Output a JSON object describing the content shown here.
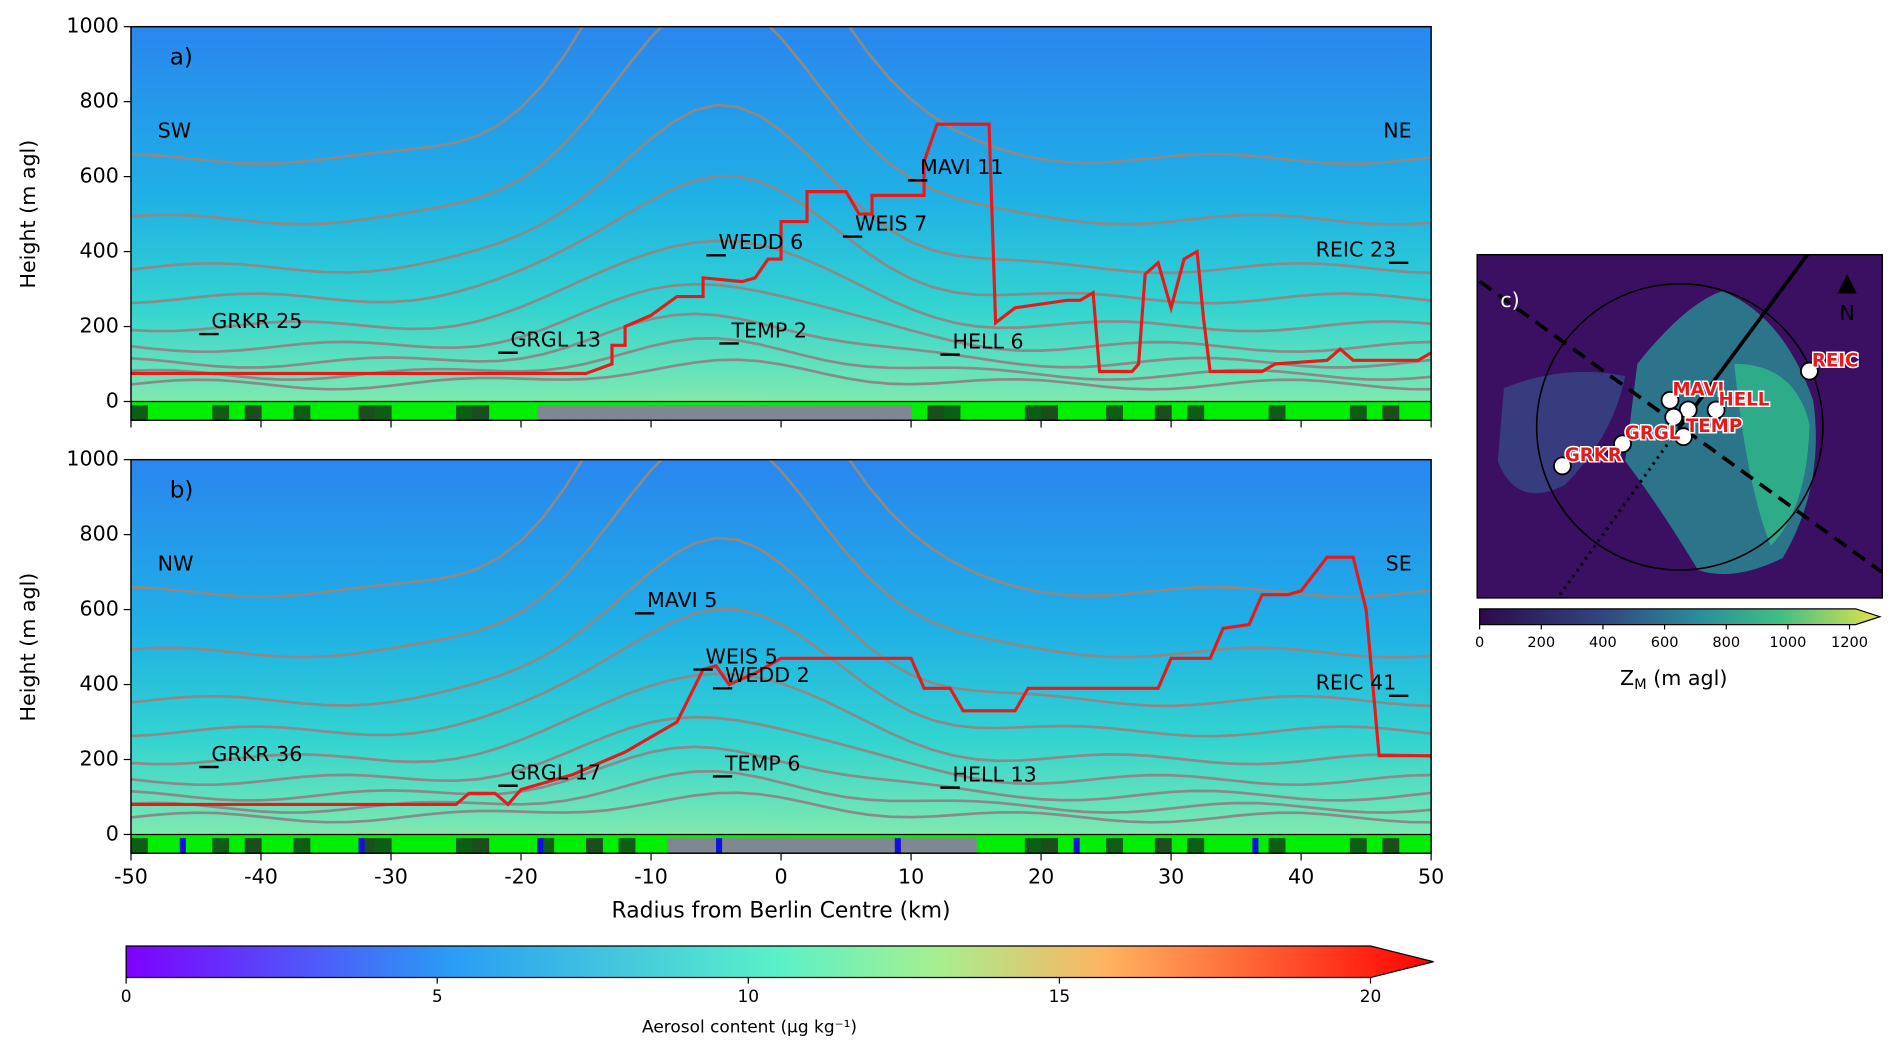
{
  "chart_data": [
    {
      "type": "line",
      "panel_label": "a)",
      "left_label": "SW",
      "right_label": "NE",
      "ylabel": "Height (m agl)",
      "xlim": [
        -50,
        50
      ],
      "xticks": [
        -50,
        -40,
        -30,
        -20,
        -10,
        0,
        10,
        20,
        30,
        40,
        50
      ],
      "ylim": [
        -50,
        1000
      ],
      "yticks": [
        0,
        200,
        400,
        600,
        800,
        1000
      ],
      "series": [
        {
          "color": "#e8191c",
          "x": [
            -50,
            -15,
            -13,
            -13,
            -12,
            -12,
            -10,
            -8,
            -6,
            -6,
            -3,
            -2,
            -1,
            0,
            0,
            2,
            2,
            5,
            6,
            7,
            7,
            10,
            11,
            11,
            12,
            14,
            16,
            16.5,
            18,
            22,
            23,
            24,
            24.5,
            27,
            27.5,
            28,
            29,
            30,
            31,
            32,
            32.5,
            33,
            36,
            37,
            38,
            42,
            43,
            44,
            49,
            50
          ],
          "values": [
            75,
            75,
            100,
            150,
            150,
            200,
            230,
            280,
            280,
            330,
            320,
            330,
            380,
            380,
            480,
            480,
            560,
            560,
            500,
            500,
            550,
            550,
            550,
            640,
            740,
            740,
            740,
            210,
            250,
            270,
            270,
            290,
            80,
            80,
            100,
            340,
            370,
            250,
            380,
            400,
            220,
            80,
            80,
            80,
            100,
            110,
            140,
            110,
            110,
            130
          ]
        }
      ],
      "stations": [
        {
          "label": "GRKR 25",
          "x": -44,
          "y": 180
        },
        {
          "label": "GRGL 13",
          "x": -21,
          "y": 130
        },
        {
          "label": "WEDD 6",
          "x": -5,
          "y": 390
        },
        {
          "label": "TEMP 2",
          "x": -4,
          "y": 155
        },
        {
          "label": "WEIS 7",
          "x": 5.5,
          "y": 440
        },
        {
          "label": "MAVI 11",
          "x": 10.5,
          "y": 590
        },
        {
          "label": "HELL 6",
          "x": 13,
          "y": 125
        },
        {
          "label": "REIC 23",
          "x": 47.5,
          "y": 370
        }
      ]
    },
    {
      "type": "line",
      "panel_label": "b)",
      "left_label": "NW",
      "right_label": "SE",
      "ylabel": "Height (m agl)",
      "xlabel": "Radius from Berlin Centre (km)",
      "xlim": [
        -50,
        50
      ],
      "xticks": [
        -50,
        -40,
        -30,
        -20,
        -10,
        0,
        10,
        20,
        30,
        40,
        50
      ],
      "ylim": [
        -50,
        1000
      ],
      "yticks": [
        0,
        200,
        400,
        600,
        800,
        1000
      ],
      "series": [
        {
          "color": "#e8191c",
          "x": [
            -50,
            -25,
            -24,
            -22,
            -21,
            -20,
            -18,
            -16,
            -14,
            -12,
            -10,
            -8,
            -6,
            -5,
            -4,
            -2,
            0,
            10,
            11,
            13,
            14,
            18,
            19,
            29,
            30,
            33,
            34,
            36,
            37,
            39,
            40,
            42,
            44,
            45,
            46,
            50
          ],
          "values": [
            80,
            80,
            110,
            110,
            80,
            120,
            140,
            160,
            190,
            220,
            260,
            300,
            440,
            450,
            400,
            430,
            470,
            470,
            390,
            390,
            330,
            330,
            390,
            390,
            470,
            470,
            550,
            560,
            640,
            640,
            650,
            740,
            740,
            600,
            210,
            210
          ]
        }
      ],
      "stations": [
        {
          "label": "GRKR 36",
          "x": -44,
          "y": 180
        },
        {
          "label": "GRGL 17",
          "x": -21,
          "y": 130
        },
        {
          "label": "MAVI 5",
          "x": -10.5,
          "y": 590
        },
        {
          "label": "WEIS 5",
          "x": -6,
          "y": 440
        },
        {
          "label": "WEDD 2",
          "x": -4.5,
          "y": 390
        },
        {
          "label": "TEMP 6",
          "x": -4.5,
          "y": 155
        },
        {
          "label": "HELL 13",
          "x": 13,
          "y": 125
        },
        {
          "label": "REIC 41",
          "x": 47.5,
          "y": 370
        }
      ],
      "colorbar": {
        "label": "Aerosol content (μg kg⁻¹)",
        "lim": [
          0,
          20
        ],
        "ticks": [
          0,
          5,
          10,
          15,
          20
        ]
      }
    },
    {
      "type": "map",
      "panel_label": "c)",
      "north": "N",
      "stations": [
        {
          "label": "GRKR",
          "x_km": -41,
          "y_km": -13.6
        },
        {
          "label": "GRGL",
          "x_km": -20,
          "y_km": -5.9
        },
        {
          "label": "TEMP",
          "x_km": 1.3,
          "y_km": -3.4
        },
        {
          "label": "MAVI",
          "x_km": -3.4,
          "y_km": 9.3
        },
        {
          "label": "HELL",
          "x_km": 12.7,
          "y_km": 5.9
        },
        {
          "label": "REIC",
          "x_km": 45.3,
          "y_km": 19.5
        }
      ],
      "colorbar": {
        "label": "Z",
        "label_sub": "M",
        "label_rest": " (m agl)",
        "lim": [
          0,
          1200
        ],
        "ticks": [
          0,
          200,
          400,
          600,
          800,
          1000,
          1200
        ]
      }
    }
  ]
}
